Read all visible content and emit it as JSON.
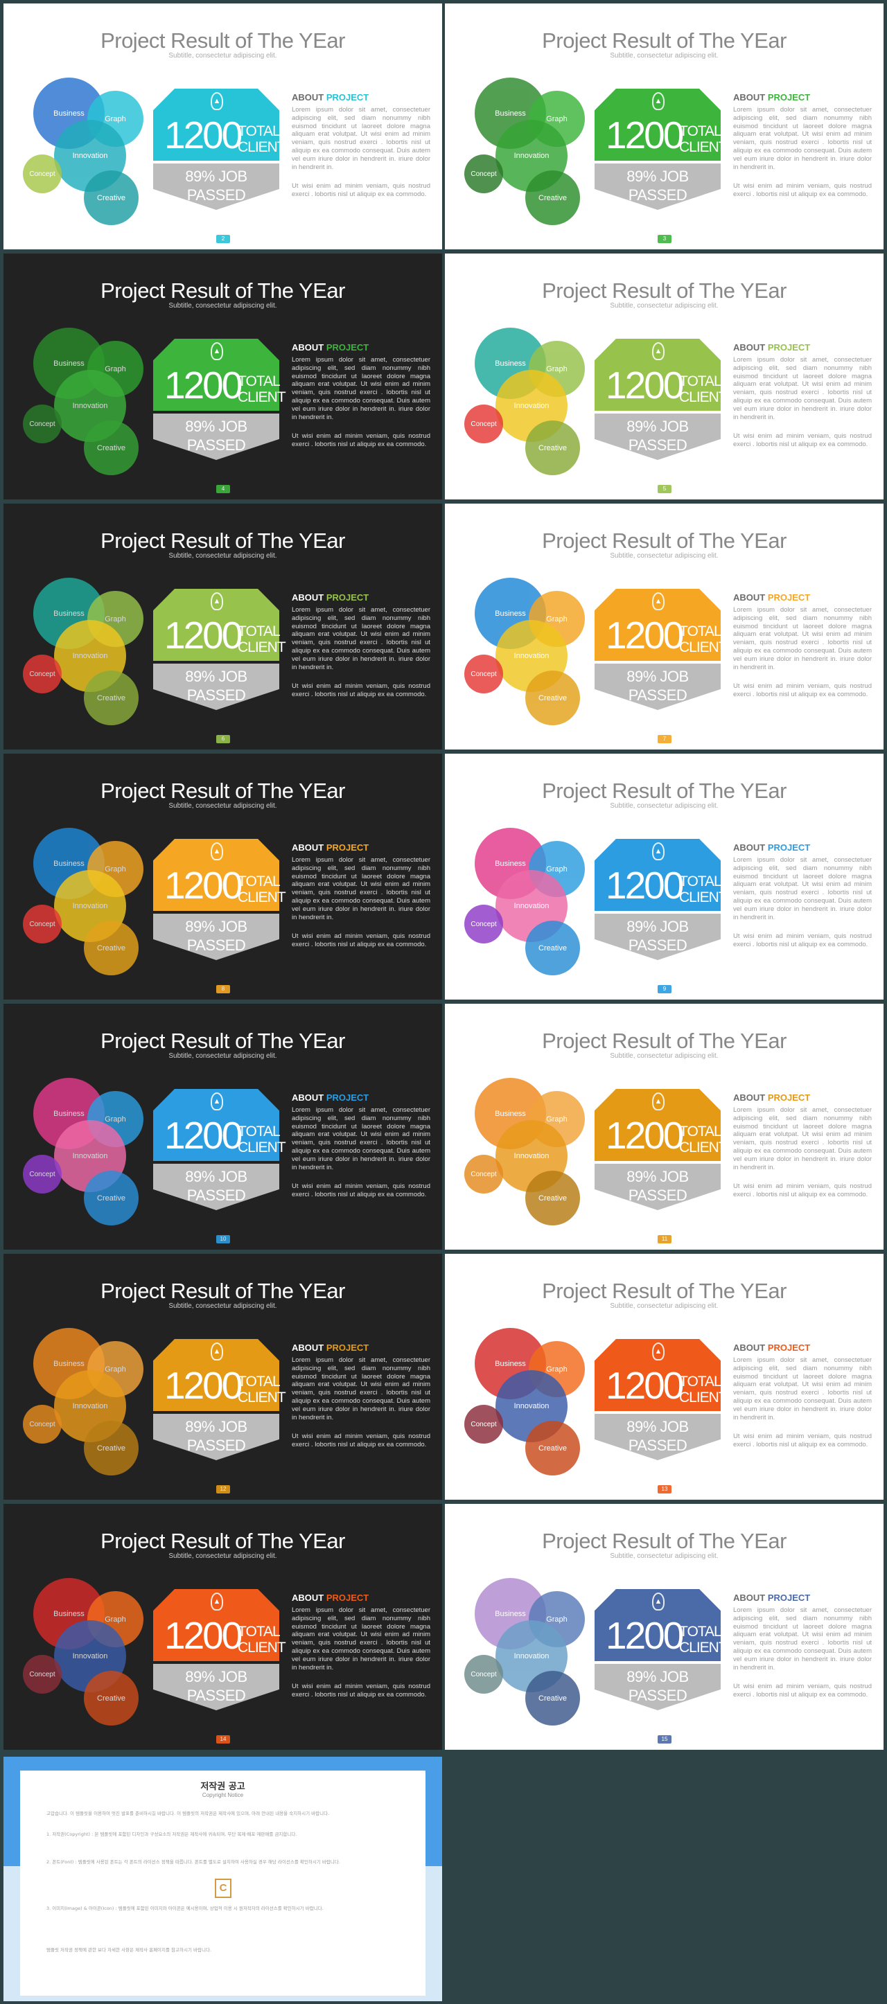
{
  "slide_text": {
    "title": "Project Result of The YEar",
    "subtitle": "Subtitle, consectetur adipiscing elit.",
    "circles": {
      "business": "Business",
      "graph": "Graph",
      "innovation": "Innovation",
      "concept": "Concept",
      "creative": "Creative"
    },
    "stat_number": "1200",
    "stat_word1": "TOTAL",
    "stat_word2": "CLIENT",
    "job_line1": "89% JOB",
    "job_line2": "PASSED",
    "about_word": "ABOUT",
    "about_project": "PROJECT",
    "paragraph1": "Lorem ipsum dolor sit amet, consectetuer adipiscing elit, sed diam nonummy nibh euismod tincidunt ut laoreet dolore magna aliquam erat volutpat. Ut wisi enim ad minim veniam, quis nostrud exerci . lobortis nisl ut aliquip ex ea commodo consequat. Duis autem vel eum iriure dolor in hendrerit in. iriure dolor in hendrerit in.",
    "paragraph2": "Ut wisi enim ad minim veniam, quis nostrud exerci . lobortis nisl ut aliquip ex ea commodo."
  },
  "slides": [
    {
      "theme": "light",
      "page": "2",
      "colors": {
        "business": "#2a74cf",
        "graph": "#27c3d6",
        "innovation": "#21aebd",
        "concept": "#a7c64a",
        "creative": "#1f9fa6",
        "hex": "#27c3d6",
        "accent": "#27c3d6"
      }
    },
    {
      "theme": "light",
      "page": "3",
      "colors": {
        "business": "#2d8a2d",
        "graph": "#3db53d",
        "innovation": "#35a535",
        "concept": "#2a7a2a",
        "creative": "#2c8e2c",
        "hex": "#3db53d",
        "accent": "#3db53d"
      }
    },
    {
      "theme": "dark",
      "page": "4",
      "colors": {
        "business": "#2a8a2a",
        "graph": "#2e9e2e",
        "innovation": "#3aad3a",
        "concept": "#2a7a2a",
        "creative": "#34a034",
        "hex": "#3db53d",
        "accent": "#3db53d"
      }
    },
    {
      "theme": "light",
      "page": "5",
      "colors": {
        "business": "#1faa9a",
        "graph": "#97c24b",
        "innovation": "#f0c61f",
        "concept": "#e53935",
        "creative": "#8aab3a",
        "hex": "#97c24b",
        "accent": "#97c24b"
      }
    },
    {
      "theme": "dark",
      "page": "6",
      "colors": {
        "business": "#1faa9a",
        "graph": "#97c24b",
        "innovation": "#f0c61f",
        "concept": "#e53935",
        "creative": "#8aab3a",
        "hex": "#97c24b",
        "accent": "#97c24b"
      }
    },
    {
      "theme": "light",
      "page": "7",
      "colors": {
        "business": "#1e88d6",
        "graph": "#f5a623",
        "innovation": "#f0c61f",
        "concept": "#e53935",
        "creative": "#e3a21a",
        "hex": "#f5a623",
        "accent": "#f5a623"
      }
    },
    {
      "theme": "dark",
      "page": "8",
      "colors": {
        "business": "#1e88d6",
        "graph": "#f5a623",
        "innovation": "#f0c61f",
        "concept": "#e53935",
        "creative": "#e3a21a",
        "hex": "#f5a623",
        "accent": "#f5a623"
      }
    },
    {
      "theme": "light",
      "page": "9",
      "colors": {
        "business": "#e23a8a",
        "graph": "#2b9de0",
        "innovation": "#ee6aa7",
        "concept": "#8e3bc8",
        "creative": "#2a8ed6",
        "hex": "#2b9de0",
        "accent": "#2b9de0"
      }
    },
    {
      "theme": "dark",
      "page": "10",
      "colors": {
        "business": "#e23a8a",
        "graph": "#2b9de0",
        "innovation": "#ee6aa7",
        "concept": "#8e3bc8",
        "creative": "#2a8ed6",
        "hex": "#2b9de0",
        "accent": "#2b9de0"
      }
    },
    {
      "theme": "light",
      "page": "11",
      "colors": {
        "business": "#f0891e",
        "graph": "#f2a33a",
        "innovation": "#e89a1a",
        "concept": "#e58a1e",
        "creative": "#b77c14",
        "hex": "#e59a16",
        "accent": "#e59a16"
      }
    },
    {
      "theme": "dark",
      "page": "12",
      "colors": {
        "business": "#f0891e",
        "graph": "#f2a33a",
        "innovation": "#e89a1a",
        "concept": "#e58a1e",
        "creative": "#b77c14",
        "hex": "#e59a16",
        "accent": "#e59a16"
      }
    },
    {
      "theme": "light",
      "page": "13",
      "colors": {
        "business": "#d62a2a",
        "graph": "#f26b1d",
        "innovation": "#3a5ca8",
        "concept": "#8a2d3a",
        "creative": "#c94a1a",
        "hex": "#ef5a1a",
        "accent": "#ef5a1a"
      }
    },
    {
      "theme": "dark",
      "page": "14",
      "colors": {
        "business": "#d62a2a",
        "graph": "#f26b1d",
        "innovation": "#3a5ca8",
        "concept": "#8a2d3a",
        "creative": "#c94a1a",
        "hex": "#ef5a1a",
        "accent": "#ef5a1a"
      }
    },
    {
      "theme": "light",
      "page": "15",
      "colors": {
        "business": "#b08ad0",
        "graph": "#5a7bb8",
        "innovation": "#6aa0c8",
        "concept": "#6e8a8a",
        "creative": "#3d5a8c",
        "hex": "#4a6aa8",
        "accent": "#4a6aa8"
      }
    }
  ],
  "notice": {
    "title": "저작권 공고",
    "subtitle": "Copyright Notice",
    "logo_letter": "C",
    "intro": "고맙습니다. 이 템플릿을 이용하여 멋진 발표를 준비하시길 바랍니다. 이 템플릿의 저작권은 제작사에 있으며, 아래 안내된 내용을 숙지하시기 바랍니다.",
    "item1": "1. 저작권(Copyright) : 본 템플릿에 포함된 디자인과 구성요소의 저작권은 제작사에 귀속되며, 무단 복제·배포·재판매를 금지합니다.",
    "item2": "2. 폰트(Font) : 템플릿에 사용된 폰트는 각 폰트의 라이선스 정책을 따릅니다. 폰트를 별도로 설치하여 사용하실 경우 해당 라이선스를 확인하시기 바랍니다.",
    "item3": "3. 이미지(Image) & 아이콘(Icon) : 템플릿에 포함된 이미지와 아이콘은 예시용이며, 상업적 이용 시 원저작자의 라이선스를 확인하시기 바랍니다.",
    "outro": "템플릿 저작권 정책에 관한 보다 자세한 사항은 제작사 홈페이지를 참고하시기 바랍니다."
  }
}
